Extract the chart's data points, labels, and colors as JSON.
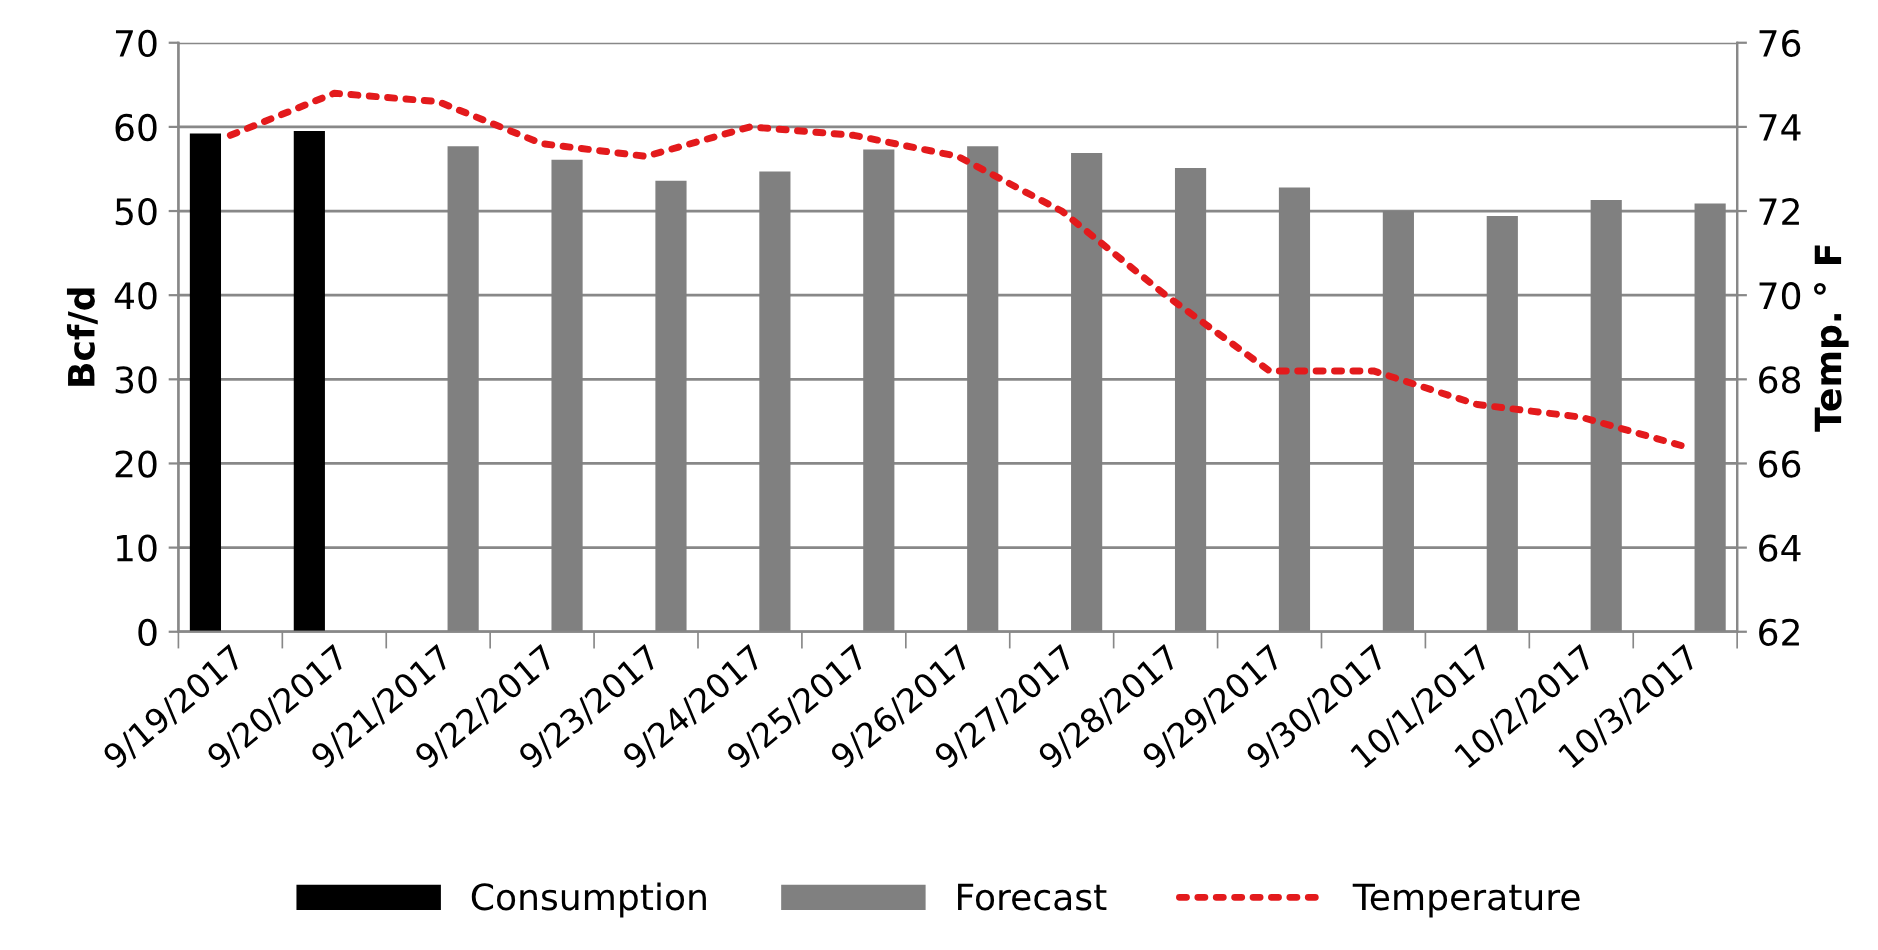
{
  "chart_data": {
    "type": "bar",
    "ylabel": "Bcf/d",
    "y2label": "Temp. ° F",
    "categories": [
      "9/19/2017",
      "9/20/2017",
      "9/21/2017",
      "9/22/2017",
      "9/23/2017",
      "9/24/2017",
      "9/25/2017",
      "9/26/2017",
      "9/27/2017",
      "9/28/2017",
      "9/29/2017",
      "9/30/2017",
      "10/1/2017",
      "10/2/2017",
      "10/3/2017"
    ],
    "series": [
      {
        "name": "Consumption",
        "color": "#000000",
        "values": [
          59.2,
          59.5,
          null,
          null,
          null,
          null,
          null,
          null,
          null,
          null,
          null,
          null,
          null,
          null,
          null
        ]
      },
      {
        "name": "Forecast",
        "color": "#808080",
        "values": [
          null,
          null,
          57.7,
          56.1,
          53.6,
          54.7,
          57.3,
          57.7,
          56.9,
          55.1,
          52.8,
          50.0,
          49.4,
          51.3,
          50.9
        ]
      },
      {
        "name": "Temperature",
        "color": "#e31a1c",
        "type": "line",
        "axis": "y2",
        "line_style": "dotted",
        "values": [
          73.8,
          74.8,
          74.6,
          73.6,
          73.3,
          74.0,
          73.8,
          73.3,
          72.0,
          70.0,
          68.2,
          68.2,
          67.4,
          67.1,
          66.4
        ]
      }
    ],
    "ylim": [
      0,
      70
    ],
    "yticks": [
      0,
      10,
      20,
      30,
      40,
      50,
      60,
      70
    ],
    "y2lim": [
      62,
      76
    ],
    "y2ticks": [
      62,
      64,
      66,
      68,
      70,
      72,
      74,
      76
    ],
    "grid": "y",
    "legend": "bottom"
  }
}
